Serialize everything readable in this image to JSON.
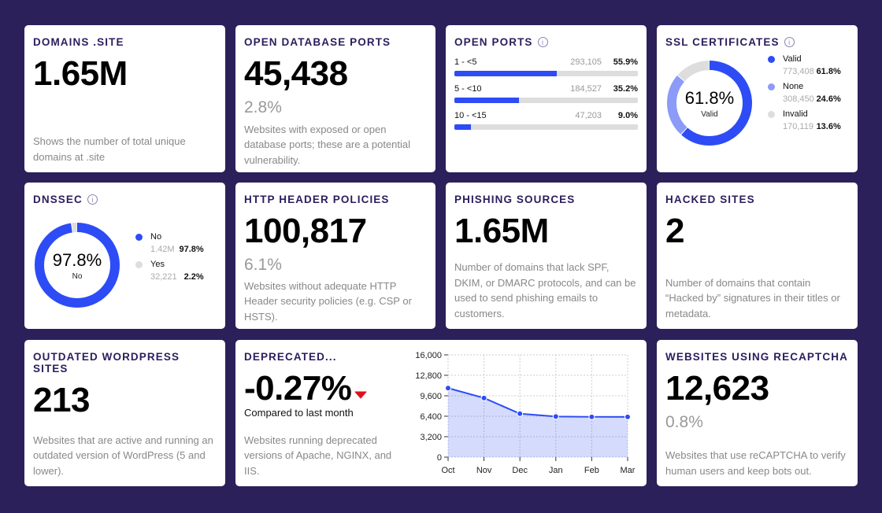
{
  "colors": {
    "background": "#2c205a",
    "primary": "#2d4cf5",
    "secondary": "#8c9bf8",
    "neutral": "#dddddd",
    "negative": "#e0101e"
  },
  "domains": {
    "title": "DOMAINS .SITE",
    "value": "1.65M",
    "desc": "Shows the number of total unique domains at .site"
  },
  "db_ports": {
    "title": "OPEN DATABASE PORTS",
    "value": "45,438",
    "pct": "2.8%",
    "desc": "Websites with exposed or open database ports; these are a potential vulnerability."
  },
  "open_ports": {
    "title": "OPEN PORTS",
    "rows": [
      {
        "label": "1 - <5",
        "count": "293,105",
        "pct": "55.9%",
        "fraction": 0.559
      },
      {
        "label": "5 - <10",
        "count": "184,527",
        "pct": "35.2%",
        "fraction": 0.352
      },
      {
        "label": "10 - <15",
        "count": "47,203",
        "pct": "9.0%",
        "fraction": 0.09
      }
    ]
  },
  "ssl": {
    "title": "SSL CERTIFICATES",
    "center_value": "61.8%",
    "center_label": "Valid",
    "items": [
      {
        "label": "Valid",
        "count": "773,408",
        "pct": "61.8%",
        "value": 61.8,
        "color": "#2d4cf5"
      },
      {
        "label": "None",
        "count": "308,450",
        "pct": "24.6%",
        "value": 24.6,
        "color": "#8c9bf8"
      },
      {
        "label": "Invalid",
        "count": "170,119",
        "pct": "13.6%",
        "value": 13.6,
        "color": "#dddddd"
      }
    ]
  },
  "dnssec": {
    "title": "DNSSEC",
    "center_value": "97.8%",
    "center_label": "No",
    "items": [
      {
        "label": "No",
        "count": "1.42M",
        "pct": "97.8%",
        "value": 97.8,
        "color": "#2d4cf5"
      },
      {
        "label": "Yes",
        "count": "32,221",
        "pct": "2.2%",
        "value": 2.2,
        "color": "#dddddd"
      }
    ]
  },
  "http": {
    "title": "HTTP HEADER POLICIES",
    "value": "100,817",
    "pct": "6.1%",
    "desc": "Websites without adequate HTTP Header security policies (e.g. CSP or HSTS)."
  },
  "phishing": {
    "title": "PHISHING SOURCES",
    "value": "1.65M",
    "desc": "Number of domains that lack SPF, DKIM, or DMARC protocols, and can be used to send phishing emails to customers."
  },
  "hacked": {
    "title": "HACKED SITES",
    "value": "2",
    "desc": "Number of domains that contain “Hacked by” signatures in their titles or metadata."
  },
  "wordpress": {
    "title": "OUTDATED WORDPRESS SITES",
    "value": "213",
    "desc": "Websites that are active and running an outdated version of WordPress (5 and lower)."
  },
  "deprecated": {
    "title": "DEPRECATED...",
    "value": "-0.27%",
    "trend": "down",
    "compare": "Compared to last month",
    "desc": "Websites running deprecated versions of Apache, NGINX, and IIS."
  },
  "recaptcha": {
    "title": "WEBSITES USING RECAPTCHA",
    "value": "12,623",
    "pct": "0.8%",
    "desc": "Websites that use reCAPTCHA to verify human users and keep bots out."
  },
  "chart_data": {
    "type": "area",
    "categories": [
      "Oct",
      "Nov",
      "Dec",
      "Jan",
      "Feb",
      "Mar"
    ],
    "values": [
      10800,
      9250,
      6800,
      6350,
      6300,
      6300
    ],
    "ylim": [
      0,
      16000
    ],
    "yticks": [
      "0",
      "3,200",
      "6,400",
      "9,600",
      "12,800",
      "16,000"
    ],
    "grid": true
  }
}
